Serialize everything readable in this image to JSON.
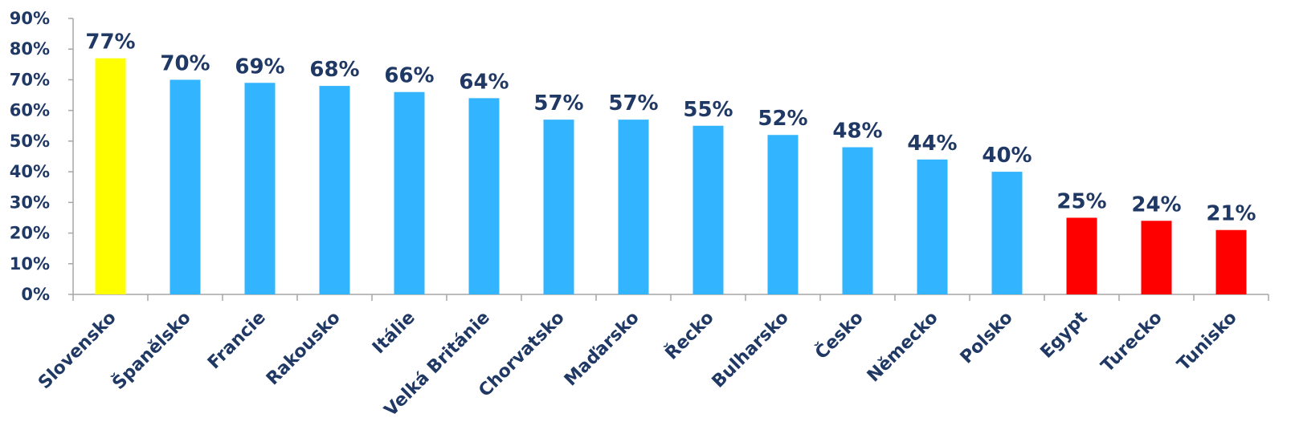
{
  "chart_data": {
    "type": "bar",
    "title": "",
    "xlabel": "",
    "ylabel": "",
    "ylim": [
      0,
      90
    ],
    "y_ticks": [
      "0%",
      "10%",
      "20%",
      "30%",
      "40%",
      "50%",
      "60%",
      "70%",
      "80%",
      "90%"
    ],
    "y_tick_values": [
      0,
      10,
      20,
      30,
      40,
      50,
      60,
      70,
      80,
      90
    ],
    "grid": false,
    "legend": "none",
    "categories": [
      "Slovensko",
      "Španělsko",
      "Francie",
      "Rakousko",
      "Itálie",
      "Velká Británie",
      "Chorvatsko",
      "Maďarsko",
      "Řecko",
      "Bulharsko",
      "Česko",
      "Německo",
      "Polsko",
      "Egypt",
      "Turecko",
      "Tunisko"
    ],
    "values": [
      77,
      70,
      69,
      68,
      66,
      64,
      57,
      57,
      55,
      52,
      48,
      44,
      40,
      25,
      24,
      21
    ],
    "data_labels": [
      "77%",
      "70%",
      "69%",
      "68%",
      "66%",
      "64%",
      "57%",
      "57%",
      "55%",
      "52%",
      "48%",
      "44%",
      "40%",
      "25%",
      "24%",
      "21%"
    ],
    "bar_colors": [
      "#ffff00",
      "#33b4ff",
      "#33b4ff",
      "#33b4ff",
      "#33b4ff",
      "#33b4ff",
      "#33b4ff",
      "#33b4ff",
      "#33b4ff",
      "#33b4ff",
      "#33b4ff",
      "#33b4ff",
      "#33b4ff",
      "#ff0000",
      "#ff0000",
      "#ff0000"
    ],
    "text_color": "#1f3864",
    "axis_color": "#a6a6a6"
  }
}
